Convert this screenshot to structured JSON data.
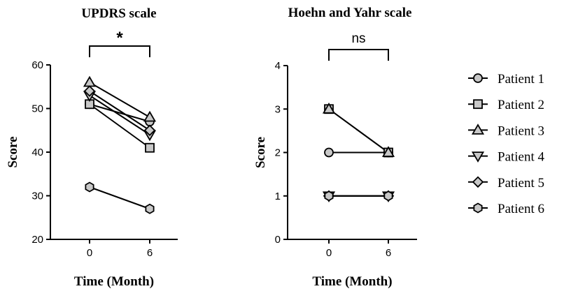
{
  "chart_data": [
    {
      "type": "line",
      "title": "UPDRS scale",
      "xlabel": "Time (Month)",
      "ylabel": "Score",
      "x": [
        0,
        6
      ],
      "x_ticks": [
        "0",
        "6"
      ],
      "ylim": [
        20,
        60
      ],
      "y_ticks": [
        20,
        30,
        40,
        50,
        60
      ],
      "grid": false,
      "significance": {
        "from": 0,
        "to": 6,
        "label": "*"
      },
      "series": [
        {
          "name": "Patient 1",
          "marker": "circle",
          "values": [
            51,
            47
          ]
        },
        {
          "name": "Patient 2",
          "marker": "square",
          "values": [
            51,
            41
          ]
        },
        {
          "name": "Patient 3",
          "marker": "triangle-up",
          "values": [
            56,
            48
          ]
        },
        {
          "name": "Patient 4",
          "marker": "triangle-down",
          "values": [
            53,
            44
          ]
        },
        {
          "name": "Patient 5",
          "marker": "diamond",
          "values": [
            54,
            45
          ]
        },
        {
          "name": "Patient 6",
          "marker": "hexagon",
          "values": [
            32,
            27
          ]
        }
      ]
    },
    {
      "type": "line",
      "title": "Hoehn and Yahr scale",
      "xlabel": "Time (Month)",
      "ylabel": "Score",
      "x": [
        0,
        6
      ],
      "x_ticks": [
        "0",
        "6"
      ],
      "ylim": [
        0,
        4
      ],
      "y_ticks": [
        0,
        1,
        2,
        3,
        4
      ],
      "grid": false,
      "significance": {
        "from": 0,
        "to": 6,
        "label": "ns"
      },
      "series": [
        {
          "name": "Patient 1",
          "marker": "circle",
          "values": [
            2,
            2
          ]
        },
        {
          "name": "Patient 2",
          "marker": "square",
          "values": [
            3,
            2
          ]
        },
        {
          "name": "Patient 3",
          "marker": "triangle-up",
          "values": [
            3,
            2
          ]
        },
        {
          "name": "Patient 4",
          "marker": "triangle-down",
          "values": [
            1,
            1
          ]
        },
        {
          "name": "Patient 5",
          "marker": "diamond",
          "values": [
            1,
            1
          ]
        },
        {
          "name": "Patient 6",
          "marker": "hexagon",
          "values": [
            1,
            1
          ]
        }
      ]
    }
  ],
  "legend": {
    "position": "right",
    "items": [
      {
        "label": "Patient 1",
        "marker": "circle"
      },
      {
        "label": "Patient 2",
        "marker": "square"
      },
      {
        "label": "Patient 3",
        "marker": "triangle-up"
      },
      {
        "label": "Patient 4",
        "marker": "triangle-down"
      },
      {
        "label": "Patient 5",
        "marker": "diamond"
      },
      {
        "label": "Patient 6",
        "marker": "hexagon"
      }
    ]
  },
  "colors": {
    "marker_fill": "#c8c8c8",
    "stroke": "#000000",
    "background": "#ffffff"
  }
}
